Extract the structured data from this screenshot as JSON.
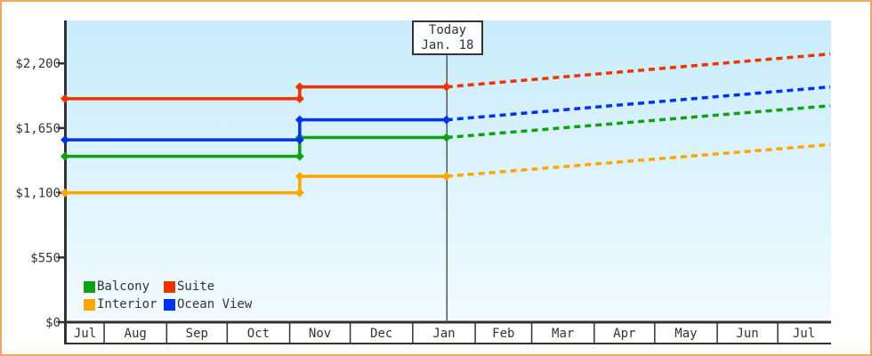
{
  "chart_data": {
    "type": "line",
    "title": "",
    "description": "Cabin price history (solid stepped lines) with dashed future price projections",
    "y_axis": {
      "tick_labels": [
        "$0",
        "$550",
        "$1,100",
        "$1,650",
        "$2,200"
      ],
      "tick_values": [
        0,
        550,
        1100,
        1650,
        2200
      ],
      "value_at_plot_top": 2565,
      "grid": "off"
    },
    "x_axis": {
      "month_labels": [
        "Jul",
        "Aug",
        "Sep",
        "Oct",
        "Nov",
        "Dec",
        "Jan",
        "Feb",
        "Mar",
        "Apr",
        "May",
        "Jun",
        "Jul"
      ],
      "month_rel_widths": [
        19,
        31,
        30,
        31,
        30,
        31,
        31,
        28,
        31,
        30,
        31,
        30,
        26
      ]
    },
    "anchors": {
      "start_frac": 0.0,
      "step_frac": 0.306,
      "today_frac": 0.498,
      "end_frac": 1.0
    },
    "series": [
      {
        "name": "Interior",
        "color": "#ffa500",
        "start_value": 1100,
        "stepped_value": 1240,
        "projected_end_value": 1510
      },
      {
        "name": "Balcony",
        "color": "#10a010",
        "start_value": 1410,
        "stepped_value": 1570,
        "projected_end_value": 1840
      },
      {
        "name": "Ocean View",
        "color": "#0033ee",
        "start_value": 1550,
        "stepped_value": 1720,
        "projected_end_value": 2000
      },
      {
        "name": "Suite",
        "color": "#ee3300",
        "start_value": 1900,
        "stepped_value": 2000,
        "projected_end_value": 2280
      }
    ],
    "legend": {
      "position": "bottom-left-inside-plot",
      "rows": [
        [
          "Balcony",
          "Suite"
        ],
        [
          "Interior",
          "Ocean View"
        ]
      ]
    },
    "today": {
      "label_line1": "Today",
      "label_line2": "Jan. 18"
    },
    "history_style": "solid",
    "projection_style": "dashed"
  },
  "colors": {
    "frame_border": "#eda961",
    "plot_gradient_top": "#c9ecfb",
    "plot_gradient_bottom": "#f2fbff",
    "axis": "#333333",
    "text": "#333333",
    "today_line": "#555555"
  }
}
